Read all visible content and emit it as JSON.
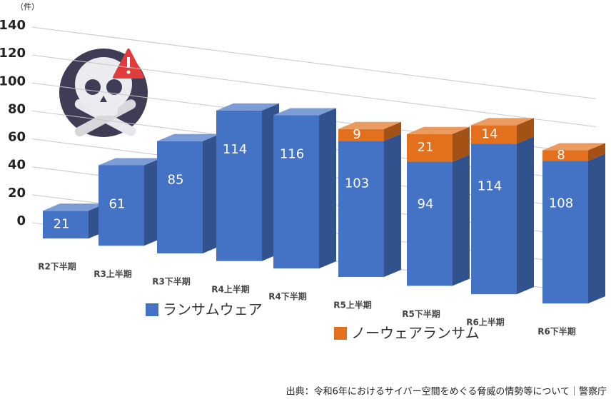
{
  "chart_data": {
    "type": "bar3d-stacked",
    "unit_label": "（件）",
    "categories": [
      "R2下半期",
      "R3上半期",
      "R3下半期",
      "R4上半期",
      "R4下半期",
      "R5上半期",
      "R5下半期",
      "R6上半期",
      "R6下半期"
    ],
    "series": [
      {
        "name": "ランサムウェア",
        "color": "#4472c4",
        "values": [
          21,
          61,
          85,
          114,
          116,
          103,
          94,
          114,
          108
        ]
      },
      {
        "name": "ノーウェアランサム",
        "color": "#e2701c",
        "values": [
          null,
          null,
          null,
          null,
          null,
          9,
          21,
          14,
          8
        ]
      }
    ],
    "ylim": [
      0,
      140
    ],
    "yticks": [
      0,
      20,
      40,
      60,
      80,
      100,
      120,
      140
    ],
    "grid": true,
    "source": "出典：令和6年におけるサイバー空間をめぐる脅威の情勢等について｜警察庁"
  }
}
